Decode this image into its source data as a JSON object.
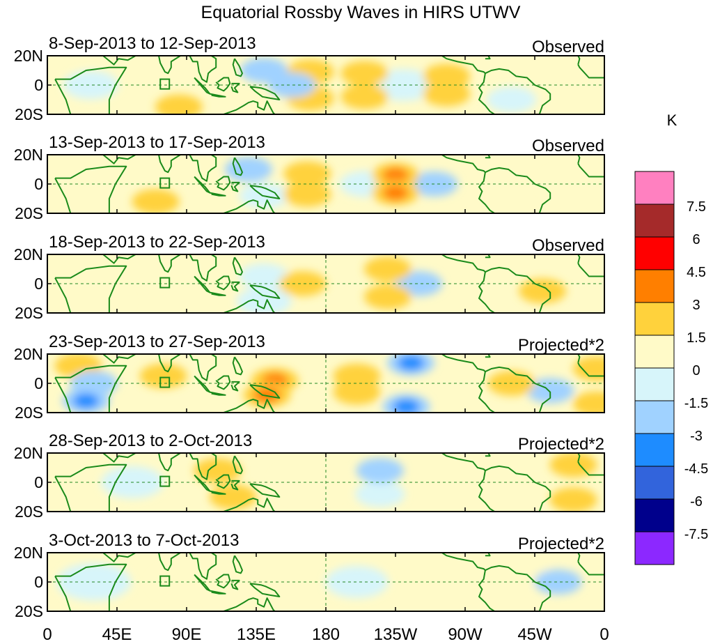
{
  "title": "Equatorial Rossby Waves in HIRS UTWV",
  "panels": [
    {
      "date_range": "8-Sep-2013 to 12-Sep-2013",
      "status": "Observed",
      "anomalies": [
        {
          "lon": 205,
          "lat": 8,
          "value": 2.0
        },
        {
          "lon": 205,
          "lat": -8,
          "value": 2.0
        },
        {
          "lon": 258,
          "lat": 6,
          "value": 1.8
        },
        {
          "lon": 258,
          "lat": -6,
          "value": 1.6
        },
        {
          "lon": 170,
          "lat": 9,
          "value": 1.6
        },
        {
          "lon": 170,
          "lat": -9,
          "value": 1.6
        },
        {
          "lon": 158,
          "lat": 0,
          "value": -2.0
        },
        {
          "lon": 140,
          "lat": 10,
          "value": -1.6
        },
        {
          "lon": 300,
          "lat": -10,
          "value": -1.4
        },
        {
          "lon": 28,
          "lat": 0,
          "value": -1.2
        },
        {
          "lon": 85,
          "lat": -15,
          "value": 1.6
        },
        {
          "lon": 230,
          "lat": 0,
          "value": -1.0
        }
      ]
    },
    {
      "date_range": "13-Sep-2013 to 17-Sep-2013",
      "status": "Observed",
      "anomalies": [
        {
          "lon": 225,
          "lat": 6,
          "value": 3.2
        },
        {
          "lon": 225,
          "lat": -6,
          "value": 3.2
        },
        {
          "lon": 168,
          "lat": 7,
          "value": 1.8
        },
        {
          "lon": 168,
          "lat": -7,
          "value": 1.8
        },
        {
          "lon": 250,
          "lat": 0,
          "value": -1.8
        },
        {
          "lon": 205,
          "lat": 0,
          "value": -1.4
        },
        {
          "lon": 130,
          "lat": 10,
          "value": -1.6
        },
        {
          "lon": 140,
          "lat": -8,
          "value": -1.4
        },
        {
          "lon": 70,
          "lat": -12,
          "value": 1.8
        },
        {
          "lon": 65,
          "lat": 12,
          "value": 1.4
        },
        {
          "lon": 340,
          "lat": 0,
          "value": 1.0
        }
      ]
    },
    {
      "date_range": "18-Sep-2013 to 22-Sep-2013",
      "status": "Observed",
      "anomalies": [
        {
          "lon": 165,
          "lat": 0,
          "value": 2.0
        },
        {
          "lon": 220,
          "lat": 10,
          "value": 1.8
        },
        {
          "lon": 220,
          "lat": -9,
          "value": 1.8
        },
        {
          "lon": 240,
          "lat": 0,
          "value": -1.6
        },
        {
          "lon": 140,
          "lat": 5,
          "value": -1.4
        },
        {
          "lon": 140,
          "lat": -12,
          "value": -1.2
        },
        {
          "lon": 40,
          "lat": 12,
          "value": 1.4
        },
        {
          "lon": 35,
          "lat": -12,
          "value": 1.2
        },
        {
          "lon": 320,
          "lat": -5,
          "value": 1.5
        }
      ]
    },
    {
      "date_range": "23-Sep-2013 to 27-Sep-2013",
      "status": "Projected*2",
      "anomalies": [
        {
          "lon": 147,
          "lat": 2,
          "value": 3.2
        },
        {
          "lon": 142,
          "lat": -8,
          "value": 4.0
        },
        {
          "lon": 200,
          "lat": 5,
          "value": 1.6
        },
        {
          "lon": 200,
          "lat": -6,
          "value": 1.6
        },
        {
          "lon": 235,
          "lat": 14,
          "value": -3.5
        },
        {
          "lon": 232,
          "lat": -16,
          "value": -3.5
        },
        {
          "lon": 30,
          "lat": 0,
          "value": -2.0
        },
        {
          "lon": 25,
          "lat": -12,
          "value": -3.2
        },
        {
          "lon": 20,
          "lat": 12,
          "value": 1.8
        },
        {
          "lon": 75,
          "lat": 5,
          "value": 1.5
        },
        {
          "lon": 300,
          "lat": 0,
          "value": 1.8
        },
        {
          "lon": 355,
          "lat": 10,
          "value": 2.0
        },
        {
          "lon": 355,
          "lat": -14,
          "value": 2.5
        },
        {
          "lon": 325,
          "lat": -5,
          "value": -1.5
        }
      ]
    },
    {
      "date_range": "28-Sep-2013 to 2-Oct-2013",
      "status": "Projected*2",
      "anomalies": [
        {
          "lon": 215,
          "lat": 8,
          "value": -1.6
        },
        {
          "lon": 215,
          "lat": -8,
          "value": -1.4
        },
        {
          "lon": 110,
          "lat": 8,
          "value": 1.5
        },
        {
          "lon": 120,
          "lat": -10,
          "value": 1.6
        },
        {
          "lon": 340,
          "lat": 12,
          "value": 1.8
        },
        {
          "lon": 340,
          "lat": -12,
          "value": 1.8
        },
        {
          "lon": 55,
          "lat": 0,
          "value": -1.0
        },
        {
          "lon": 170,
          "lat": 0,
          "value": 0.8
        }
      ]
    },
    {
      "date_range": "3-Oct-2013 to 7-Oct-2013",
      "status": "Projected*2",
      "anomalies": [
        {
          "lon": 85,
          "lat": 0,
          "value": 1.2
        },
        {
          "lon": 125,
          "lat": 8,
          "value": 1.0
        },
        {
          "lon": 125,
          "lat": -10,
          "value": 1.0
        },
        {
          "lon": 200,
          "lat": 0,
          "value": -1.0
        },
        {
          "lon": 330,
          "lat": 0,
          "value": -1.6
        },
        {
          "lon": 300,
          "lat": 8,
          "value": 0.8
        },
        {
          "lon": 30,
          "lat": 0,
          "value": -0.8
        }
      ]
    }
  ],
  "map": {
    "lat_ticks": [
      "20N",
      "0",
      "20S"
    ],
    "lon_ticks": [
      "0",
      "45E",
      "90E",
      "135E",
      "180",
      "135W",
      "90W",
      "45W",
      "0"
    ],
    "lon_range": [
      0,
      360
    ],
    "lat_range": [
      -20,
      20
    ],
    "reference_meridian_lon": 180
  },
  "colorbar": {
    "unit": "K",
    "levels": [
      7.5,
      6,
      4.5,
      3,
      1.5,
      0,
      -1.5,
      -3,
      -4.5,
      -6,
      -7.5
    ],
    "level_labels": [
      "7.5",
      "6",
      "4.5",
      "3",
      "1.5",
      "0",
      "-1.5",
      "-3",
      "-4.5",
      "-6",
      "-7.5"
    ],
    "colors": [
      "#ff80c0",
      "#a52a2a",
      "#ff0000",
      "#ff7f00",
      "#ffd23c",
      "#fffac8",
      "#d7f5fa",
      "#a0d2ff",
      "#1e8cff",
      "#3264dc",
      "#00008c",
      "#8c28ff"
    ]
  },
  "colors": {
    "coast": "#1a8a1a",
    "equator": "#228822",
    "frame": "#000000"
  }
}
